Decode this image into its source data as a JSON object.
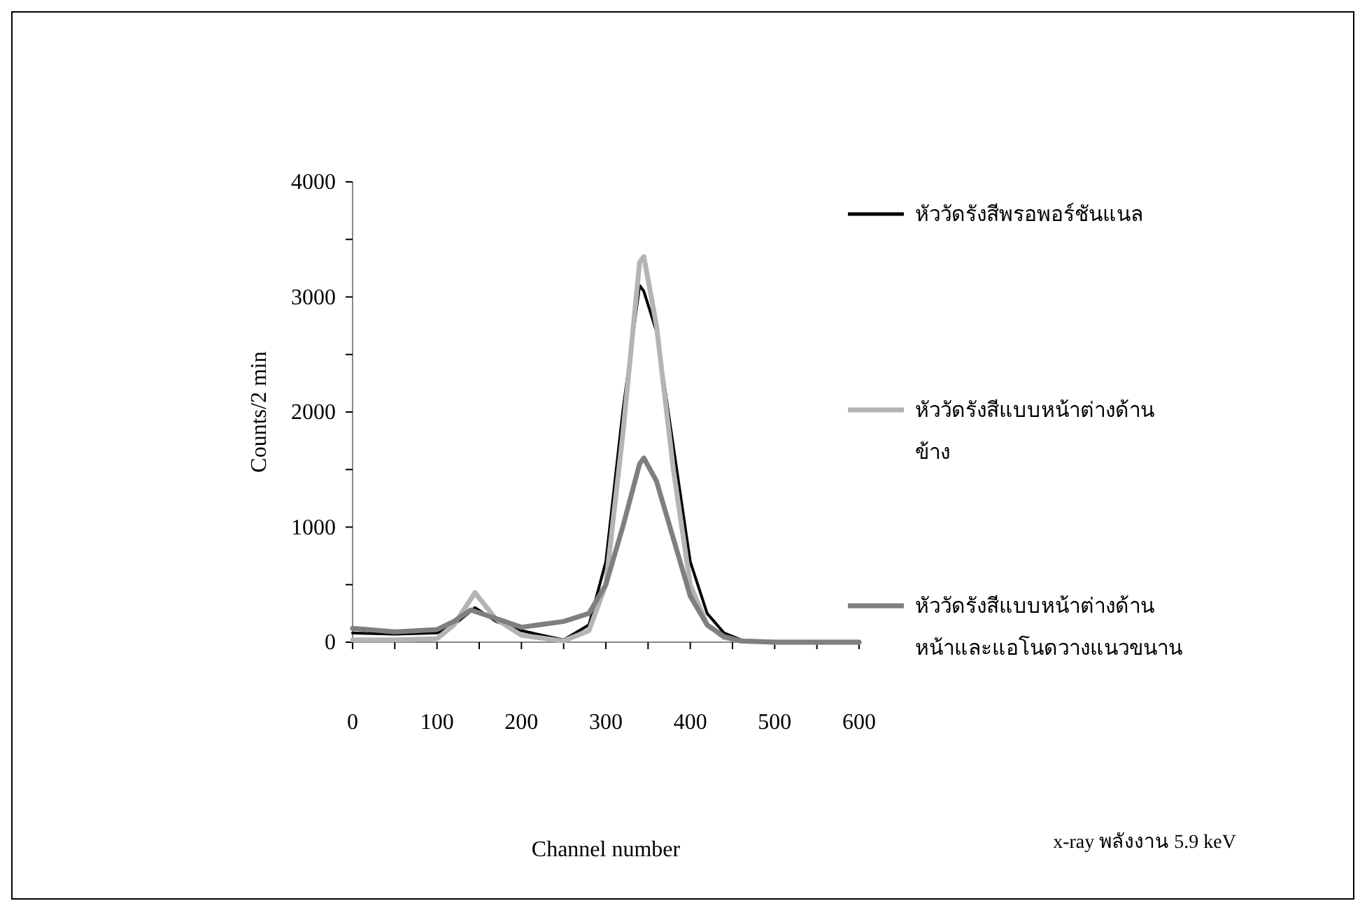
{
  "chart_data": {
    "type": "line",
    "xlabel": "Channel number",
    "ylabel": "Counts/2 min",
    "xlim": [
      0,
      600
    ],
    "ylim": [
      0,
      4000
    ],
    "xticks": [
      0,
      {
        "value": 50,
        "label": null
      },
      100,
      {
        "value": 150,
        "label": null
      },
      200,
      {
        "value": 250,
        "label": null
      },
      300,
      {
        "value": 350,
        "label": null
      },
      400,
      {
        "value": 450,
        "label": null
      },
      500,
      {
        "value": 550,
        "label": null
      },
      600
    ],
    "yticks": [
      0,
      {
        "value": 500,
        "label": null
      },
      1000,
      {
        "value": 1500,
        "label": null
      },
      2000,
      {
        "value": 2500,
        "label": null
      },
      3000,
      {
        "value": 3500,
        "label": null
      },
      4000
    ],
    "grid": false,
    "legend": "right",
    "line_style": "solid",
    "marker": "none",
    "annotations": [
      "x-ray พลังงาน 5.9 keV"
    ],
    "series": [
      {
        "name": "หัววัดรังสีพรอพอร์ชันแนล",
        "color": "#000000",
        "x": [
          0,
          50,
          100,
          120,
          145,
          170,
          200,
          250,
          280,
          300,
          320,
          340,
          345,
          360,
          380,
          400,
          420,
          440,
          460,
          500,
          600
        ],
        "values": [
          80,
          70,
          80,
          150,
          300,
          180,
          100,
          20,
          150,
          700,
          2000,
          3100,
          3050,
          2700,
          1700,
          700,
          250,
          80,
          20,
          0,
          0
        ]
      },
      {
        "name": "หัววัดรังสีแบบหน้าต่างด้านข้าง",
        "color": "#b4b4b4",
        "x": [
          0,
          50,
          100,
          120,
          145,
          170,
          200,
          250,
          280,
          300,
          320,
          340,
          345,
          360,
          380,
          400,
          420,
          440,
          460,
          500,
          600
        ],
        "values": [
          20,
          20,
          30,
          150,
          430,
          200,
          60,
          10,
          100,
          500,
          1800,
          3300,
          3350,
          2750,
          1500,
          500,
          150,
          40,
          10,
          0,
          0
        ]
      },
      {
        "name": "หัววัดรังสีแบบหน้าต่างด้านหน้าและแอโนดวางแนวขนาน",
        "color": "#7f7f7f",
        "x": [
          0,
          50,
          100,
          120,
          140,
          160,
          200,
          250,
          280,
          300,
          320,
          340,
          345,
          360,
          380,
          400,
          420,
          440,
          460,
          500,
          600
        ],
        "values": [
          120,
          90,
          110,
          180,
          280,
          230,
          130,
          180,
          250,
          500,
          1000,
          1550,
          1600,
          1400,
          900,
          400,
          150,
          50,
          10,
          0,
          0
        ]
      }
    ]
  }
}
